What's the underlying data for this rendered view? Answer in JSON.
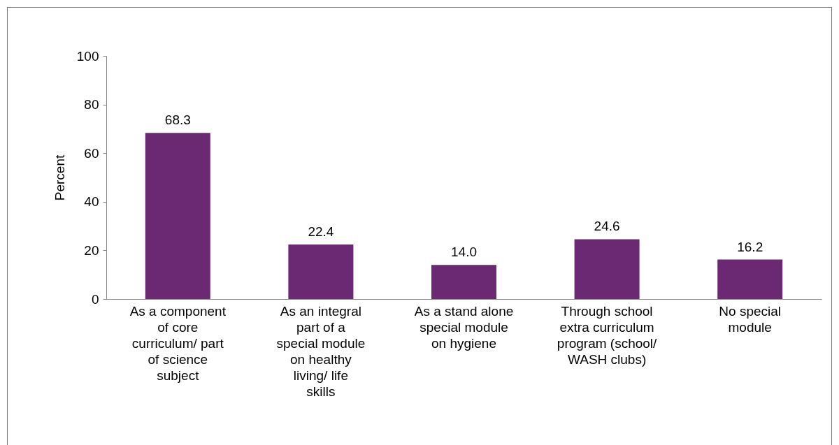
{
  "chart_data": {
    "type": "bar",
    "ylabel": "Percent",
    "categories": [
      "As a component of core curriculum/ part of science subject",
      "As an integral part of a special module on healthy living/ life skills",
      "As a stand alone special module on hygiene",
      "Through school extra curriculum program (school/ WASH clubs)",
      "No special module"
    ],
    "values": [
      68.3,
      22.4,
      14.0,
      24.6,
      16.2
    ],
    "value_labels": [
      "68.3",
      "22.4",
      "14.0",
      "24.6",
      "16.2"
    ],
    "color": "#6b2873",
    "ylim": [
      0,
      100
    ],
    "yticks": [
      0,
      20,
      40,
      60,
      80,
      100
    ],
    "grid": false
  }
}
